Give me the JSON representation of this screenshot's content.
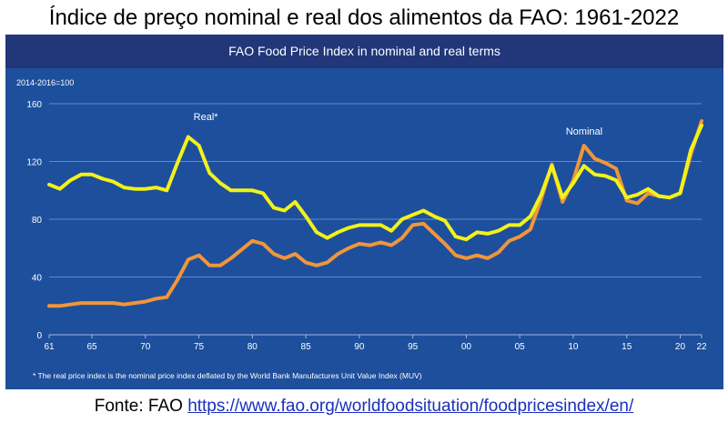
{
  "title": "Índice de preço nominal e real dos alimentos da FAO: 1961-2022",
  "source_label": "Fonte: FAO",
  "source_link": "https://www.fao.org/worldfoodsituation/foodpricesindex/en/",
  "colors": {
    "panel": "#1d4f9c",
    "banner": "#213779",
    "real": "#f2f21a",
    "nominal": "#f0963a",
    "grid": "#5f8cc8"
  },
  "chart_data": {
    "type": "line",
    "title": "FAO Food Price Index in nominal and real terms",
    "ylabel": "2014-2016=100",
    "footnote": "* The real price index is the nominal price index deflated by the World Bank Manufactures Unit Value Index (MUV)",
    "ylim": [
      0,
      160
    ],
    "xlim": [
      1961,
      2022
    ],
    "yticks": [
      0,
      40,
      80,
      120,
      160
    ],
    "xticks": [
      {
        "year": 1961,
        "label": "61"
      },
      {
        "year": 1965,
        "label": "65"
      },
      {
        "year": 1970,
        "label": "70"
      },
      {
        "year": 1975,
        "label": "75"
      },
      {
        "year": 1980,
        "label": "80"
      },
      {
        "year": 1985,
        "label": "85"
      },
      {
        "year": 1990,
        "label": "90"
      },
      {
        "year": 1995,
        "label": "95"
      },
      {
        "year": 2000,
        "label": "00"
      },
      {
        "year": 2005,
        "label": "05"
      },
      {
        "year": 2010,
        "label": "10"
      },
      {
        "year": 2015,
        "label": "15"
      },
      {
        "year": 2020,
        "label": "20"
      },
      {
        "year": 2022,
        "label": "22"
      }
    ],
    "x": [
      1961,
      1962,
      1963,
      1964,
      1965,
      1966,
      1967,
      1968,
      1969,
      1970,
      1971,
      1972,
      1973,
      1974,
      1975,
      1976,
      1977,
      1978,
      1979,
      1980,
      1981,
      1982,
      1983,
      1984,
      1985,
      1986,
      1987,
      1988,
      1989,
      1990,
      1991,
      1992,
      1993,
      1994,
      1995,
      1996,
      1997,
      1998,
      1999,
      2000,
      2001,
      2002,
      2003,
      2004,
      2005,
      2006,
      2007,
      2008,
      2009,
      2010,
      2011,
      2012,
      2013,
      2014,
      2015,
      2016,
      2017,
      2018,
      2019,
      2020,
      2021,
      2022
    ],
    "series": [
      {
        "name": "Real*",
        "values": [
          104,
          101,
          107,
          111,
          111,
          108,
          106,
          102,
          101,
          101,
          102,
          100,
          119,
          137,
          131,
          112,
          105,
          100,
          100,
          100,
          98,
          88,
          86,
          92,
          82,
          71,
          67,
          71,
          74,
          76,
          76,
          76,
          72,
          80,
          83,
          86,
          82,
          79,
          68,
          66,
          71,
          70,
          72,
          76,
          76,
          82,
          97,
          117,
          95,
          105,
          117,
          111,
          110,
          107,
          95,
          97,
          101,
          96,
          95,
          98,
          128,
          145
        ]
      },
      {
        "name": "Nominal",
        "values": [
          20,
          20,
          21,
          22,
          22,
          22,
          22,
          21,
          22,
          23,
          25,
          26,
          38,
          52,
          55,
          48,
          48,
          53,
          59,
          65,
          63,
          56,
          53,
          56,
          50,
          48,
          50,
          56,
          60,
          63,
          62,
          64,
          62,
          67,
          76,
          77,
          70,
          63,
          55,
          53,
          55,
          53,
          57,
          65,
          68,
          73,
          94,
          118,
          92,
          107,
          131,
          122,
          119,
          115,
          93,
          91,
          98,
          96,
          95,
          98,
          125,
          148
        ]
      }
    ],
    "annotations": [
      {
        "text": "Real*",
        "series": "Real*"
      },
      {
        "text": "Nominal",
        "series": "Nominal"
      }
    ]
  }
}
